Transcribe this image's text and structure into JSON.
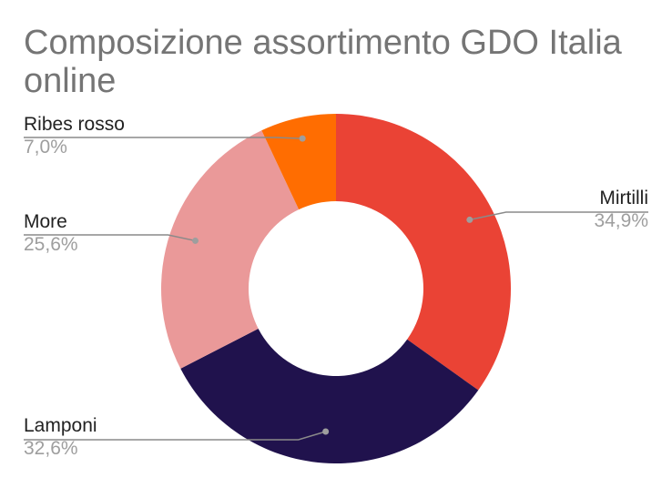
{
  "chart_data": {
    "type": "pie",
    "donut": true,
    "title": "Composizione assortimento GDO Italia online",
    "legend": "none",
    "slices": [
      {
        "label": "Mirtilli",
        "value": 34.9,
        "value_label": "34,9%",
        "color": "#ea4335"
      },
      {
        "label": "Lamponi",
        "value": 32.6,
        "value_label": "32,6%",
        "color": "#20124d"
      },
      {
        "label": "More",
        "value": 25.6,
        "value_label": "25,6%",
        "color": "#ea9999"
      },
      {
        "label": "Ribes rosso",
        "value": 7.0,
        "value_label": "7,0%",
        "color": "#ff6d01"
      }
    ]
  }
}
